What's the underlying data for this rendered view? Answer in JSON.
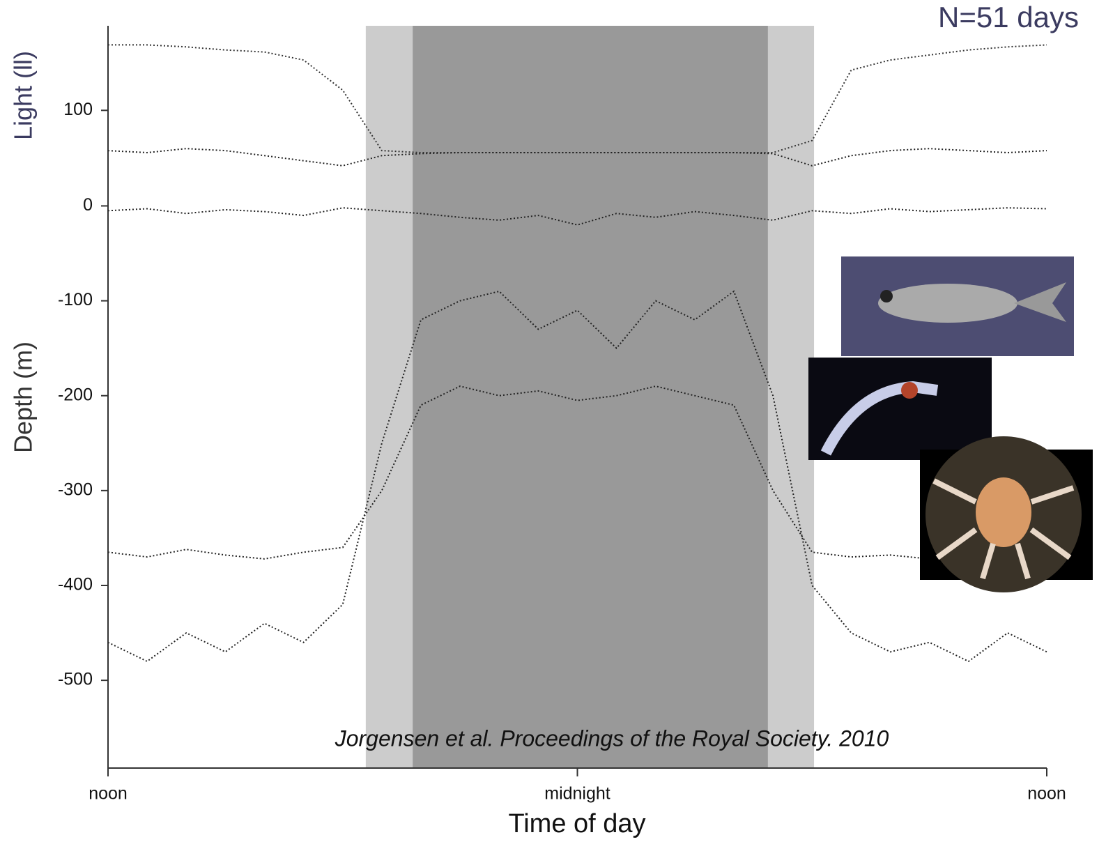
{
  "chart_data": [
    {
      "type": "scatter",
      "ylabel": "Light (ll)",
      "ylim": [
        40,
        184
      ],
      "yticks": [
        100
      ],
      "xlim": [
        12,
        36
      ],
      "series": [
        {
          "color": "#333333",
          "x": [
            12,
            13,
            14,
            15,
            16,
            17,
            18,
            19,
            20,
            21,
            22,
            23,
            24,
            25,
            26,
            27,
            28,
            29,
            30,
            31,
            32,
            33,
            34,
            35,
            36
          ],
          "values": [
            165,
            165,
            163,
            160,
            158,
            150,
            120,
            60,
            58,
            58,
            58,
            58,
            58,
            58,
            58,
            58,
            58,
            58,
            70,
            140,
            150,
            155,
            160,
            163,
            165
          ]
        },
        {
          "color": "#222222",
          "x": [
            12,
            13,
            14,
            15,
            16,
            17,
            18,
            19,
            20,
            21,
            22,
            23,
            24,
            25,
            26,
            27,
            28,
            29,
            30,
            31,
            32,
            33,
            34,
            35,
            36
          ],
          "values": [
            60,
            58,
            62,
            60,
            55,
            50,
            45,
            55,
            57,
            58,
            58,
            58,
            58,
            58,
            58,
            58,
            58,
            57,
            45,
            55,
            60,
            62,
            60,
            58,
            60
          ]
        }
      ]
    },
    {
      "type": "scatter",
      "ylabel": "Depth (m)",
      "xlabel": "Time of day",
      "ylim": [
        -591,
        4
      ],
      "yticks": [
        0,
        -100,
        -200,
        -300,
        -400,
        -500
      ],
      "xlim": [
        12,
        36
      ],
      "xticks": [
        {
          "value": 12,
          "label": "noon"
        },
        {
          "value": 24,
          "label": "midnight"
        },
        {
          "value": 36,
          "label": "noon"
        }
      ],
      "shading": [
        {
          "x0": 18.59,
          "x1": 30.05,
          "color": "#cccccc"
        },
        {
          "x0": 19.79,
          "x1": 28.87,
          "color": "#999999"
        }
      ],
      "series": [
        {
          "color": "#222222",
          "x": [
            12,
            13,
            14,
            15,
            16,
            17,
            18,
            19,
            20,
            21,
            22,
            23,
            24,
            25,
            26,
            27,
            28,
            29,
            30,
            31,
            32,
            33,
            34,
            35,
            36
          ],
          "values": [
            -460,
            -480,
            -450,
            -470,
            -440,
            -460,
            -420,
            -250,
            -120,
            -100,
            -90,
            -130,
            -110,
            -150,
            -100,
            -120,
            -90,
            -200,
            -400,
            -450,
            -470,
            -460,
            -480,
            -450,
            -470
          ]
        },
        {
          "color": "#222222",
          "x": [
            12,
            13,
            14,
            15,
            16,
            17,
            18,
            19,
            20,
            21,
            22,
            23,
            24,
            25,
            26,
            27,
            28,
            29,
            30,
            31,
            32,
            33,
            34,
            35,
            36
          ],
          "values": [
            -365,
            -370,
            -362,
            -368,
            -372,
            -365,
            -360,
            -300,
            -210,
            -190,
            -200,
            -195,
            -205,
            -200,
            -190,
            -200,
            -210,
            -300,
            -365,
            -370,
            -368,
            -372,
            -365,
            -370,
            -368
          ]
        },
        {
          "color": "#222222",
          "x": [
            12,
            13,
            14,
            15,
            16,
            17,
            18,
            19,
            20,
            21,
            22,
            23,
            24,
            25,
            26,
            27,
            28,
            29,
            30,
            31,
            32,
            33,
            34,
            35,
            36
          ],
          "values": [
            -5,
            -3,
            -8,
            -4,
            -6,
            -10,
            -2,
            -5,
            -8,
            -12,
            -15,
            -10,
            -20,
            -8,
            -12,
            -6,
            -10,
            -15,
            -5,
            -8,
            -3,
            -6,
            -4,
            -2,
            -3
          ]
        }
      ]
    }
  ],
  "n_label": "N=51 days",
  "citation": "Jorgensen et al. Proceedings of the Royal Society. 2010"
}
